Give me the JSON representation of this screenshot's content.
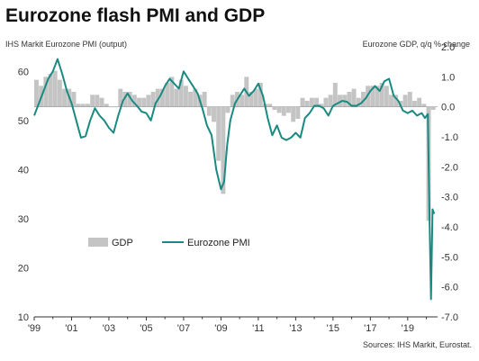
{
  "chart_data": {
    "type": "bar+line",
    "title": "Eurozone flash PMI and GDP",
    "left_axis_label": "IHS Markit Eurozone PMI (output)",
    "right_axis_label": "Eurozone GDP, q/q % change",
    "source": "Sources: IHS Markit, Eurostat.",
    "left_ylim": [
      10,
      65
    ],
    "right_ylim": [
      -7.0,
      2.0
    ],
    "left_ticks": [
      "60",
      "50",
      "40",
      "30",
      "20",
      "10"
    ],
    "right_ticks": [
      "2.0",
      "1.0",
      "0.0",
      "-1.0",
      "-2.0",
      "-3.0",
      "-4.0",
      "-5.0",
      "-6.0",
      "-7.0"
    ],
    "x_ticks": [
      "'99",
      "'01",
      "'03",
      "'05",
      "'07",
      "'09",
      "'11",
      "'13",
      "'15",
      "'17",
      "'19"
    ],
    "x_tick_years": [
      1999,
      2001,
      2003,
      2005,
      2007,
      2009,
      2011,
      2013,
      2015,
      2017,
      2019
    ],
    "xlim": [
      1999,
      2020.6
    ],
    "legend": {
      "gdp_label": "GDP",
      "pmi_label": "Eurozone PMI",
      "placement": "middle-left"
    },
    "colors": {
      "gdp_bar": "#c4c4c4",
      "pmi_line": "#1a8a80",
      "axis": "#333333"
    },
    "series": [
      {
        "name": "GDP",
        "axis": "right",
        "type": "bar",
        "x": [
          1999.0,
          1999.25,
          1999.5,
          1999.75,
          2000.0,
          2000.25,
          2000.5,
          2000.75,
          2001.0,
          2001.25,
          2001.5,
          2001.75,
          2002.0,
          2002.25,
          2002.5,
          2002.75,
          2003.0,
          2003.25,
          2003.5,
          2003.75,
          2004.0,
          2004.25,
          2004.5,
          2004.75,
          2005.0,
          2005.25,
          2005.5,
          2005.75,
          2006.0,
          2006.25,
          2006.5,
          2006.75,
          2007.0,
          2007.25,
          2007.5,
          2007.75,
          2008.0,
          2008.25,
          2008.5,
          2008.75,
          2009.0,
          2009.25,
          2009.5,
          2009.75,
          2010.0,
          2010.25,
          2010.5,
          2010.75,
          2011.0,
          2011.25,
          2011.5,
          2011.75,
          2012.0,
          2012.25,
          2012.5,
          2012.75,
          2013.0,
          2013.25,
          2013.5,
          2013.75,
          2014.0,
          2014.25,
          2014.5,
          2014.75,
          2015.0,
          2015.25,
          2015.5,
          2015.75,
          2016.0,
          2016.25,
          2016.5,
          2016.75,
          2017.0,
          2017.25,
          2017.5,
          2017.75,
          2018.0,
          2018.25,
          2018.5,
          2018.75,
          2019.0,
          2019.25,
          2019.5,
          2019.75,
          2020.0,
          2020.25
        ],
        "values": [
          0.9,
          0.7,
          1.0,
          1.1,
          1.2,
          0.9,
          0.6,
          0.6,
          0.5,
          0.1,
          0.1,
          0.1,
          0.4,
          0.4,
          0.3,
          0.1,
          0.0,
          0.0,
          0.6,
          0.5,
          0.5,
          0.4,
          0.3,
          0.3,
          0.4,
          0.5,
          0.6,
          0.6,
          0.8,
          1.0,
          0.6,
          0.9,
          0.7,
          0.5,
          0.6,
          0.4,
          0.5,
          -0.3,
          -0.5,
          -1.8,
          -2.9,
          -0.2,
          0.4,
          0.5,
          0.4,
          1.0,
          0.5,
          0.6,
          0.8,
          0.1,
          0.1,
          -0.1,
          -0.2,
          -0.3,
          -0.2,
          -0.5,
          -0.4,
          0.3,
          0.2,
          0.3,
          0.3,
          0.1,
          0.3,
          0.4,
          0.8,
          0.4,
          0.4,
          0.5,
          0.6,
          0.3,
          0.5,
          0.7,
          0.7,
          0.7,
          0.8,
          0.7,
          0.4,
          0.4,
          0.2,
          0.4,
          0.5,
          0.2,
          0.3,
          0.1,
          -3.8,
          -0.1
        ]
      },
      {
        "name": "Eurozone PMI",
        "axis": "left",
        "type": "line",
        "x": [
          1999.0,
          1999.25,
          1999.5,
          1999.75,
          2000.0,
          2000.25,
          2000.5,
          2000.75,
          2001.0,
          2001.25,
          2001.5,
          2001.75,
          2002.0,
          2002.25,
          2002.5,
          2002.75,
          2003.0,
          2003.25,
          2003.5,
          2003.75,
          2004.0,
          2004.25,
          2004.5,
          2004.75,
          2005.0,
          2005.25,
          2005.5,
          2005.75,
          2006.0,
          2006.25,
          2006.5,
          2006.75,
          2007.0,
          2007.25,
          2007.5,
          2007.75,
          2008.0,
          2008.25,
          2008.5,
          2008.75,
          2009.0,
          2009.17,
          2009.33,
          2009.5,
          2009.75,
          2010.0,
          2010.25,
          2010.5,
          2010.75,
          2011.0,
          2011.25,
          2011.5,
          2011.75,
          2012.0,
          2012.25,
          2012.5,
          2012.75,
          2013.0,
          2013.25,
          2013.5,
          2013.75,
          2014.0,
          2014.25,
          2014.5,
          2014.75,
          2015.0,
          2015.25,
          2015.5,
          2015.75,
          2016.0,
          2016.25,
          2016.5,
          2016.75,
          2017.0,
          2017.25,
          2017.5,
          2017.75,
          2018.0,
          2018.25,
          2018.5,
          2018.75,
          2019.0,
          2019.25,
          2019.5,
          2019.75,
          2019.92,
          2020.08,
          2020.17,
          2020.25,
          2020.33,
          2020.42
        ],
        "values": [
          51.0,
          53.5,
          56.0,
          58.5,
          60.0,
          62.5,
          59.5,
          56.0,
          53.5,
          50.0,
          46.5,
          46.8,
          50.0,
          52.5,
          51.0,
          50.0,
          48.5,
          47.5,
          51.0,
          54.0,
          55.5,
          54.0,
          53.0,
          51.8,
          51.5,
          50.0,
          53.5,
          55.0,
          57.0,
          58.5,
          57.5,
          56.5,
          60.0,
          58.5,
          57.0,
          55.5,
          52.5,
          49.0,
          47.0,
          40.0,
          36.0,
          37.5,
          45.0,
          50.0,
          53.5,
          55.0,
          56.5,
          55.0,
          56.0,
          57.5,
          55.0,
          50.5,
          47.0,
          49.0,
          46.5,
          46.0,
          46.5,
          47.5,
          46.5,
          50.5,
          51.5,
          53.0,
          53.0,
          52.5,
          51.0,
          53.0,
          53.5,
          54.0,
          53.8,
          53.0,
          53.0,
          53.5,
          54.5,
          56.0,
          57.0,
          56.0,
          58.0,
          58.5,
          55.0,
          54.0,
          52.0,
          51.5,
          52.0,
          51.0,
          51.5,
          50.5,
          51.3,
          29.7,
          13.6,
          31.9,
          31.0
        ]
      }
    ]
  }
}
